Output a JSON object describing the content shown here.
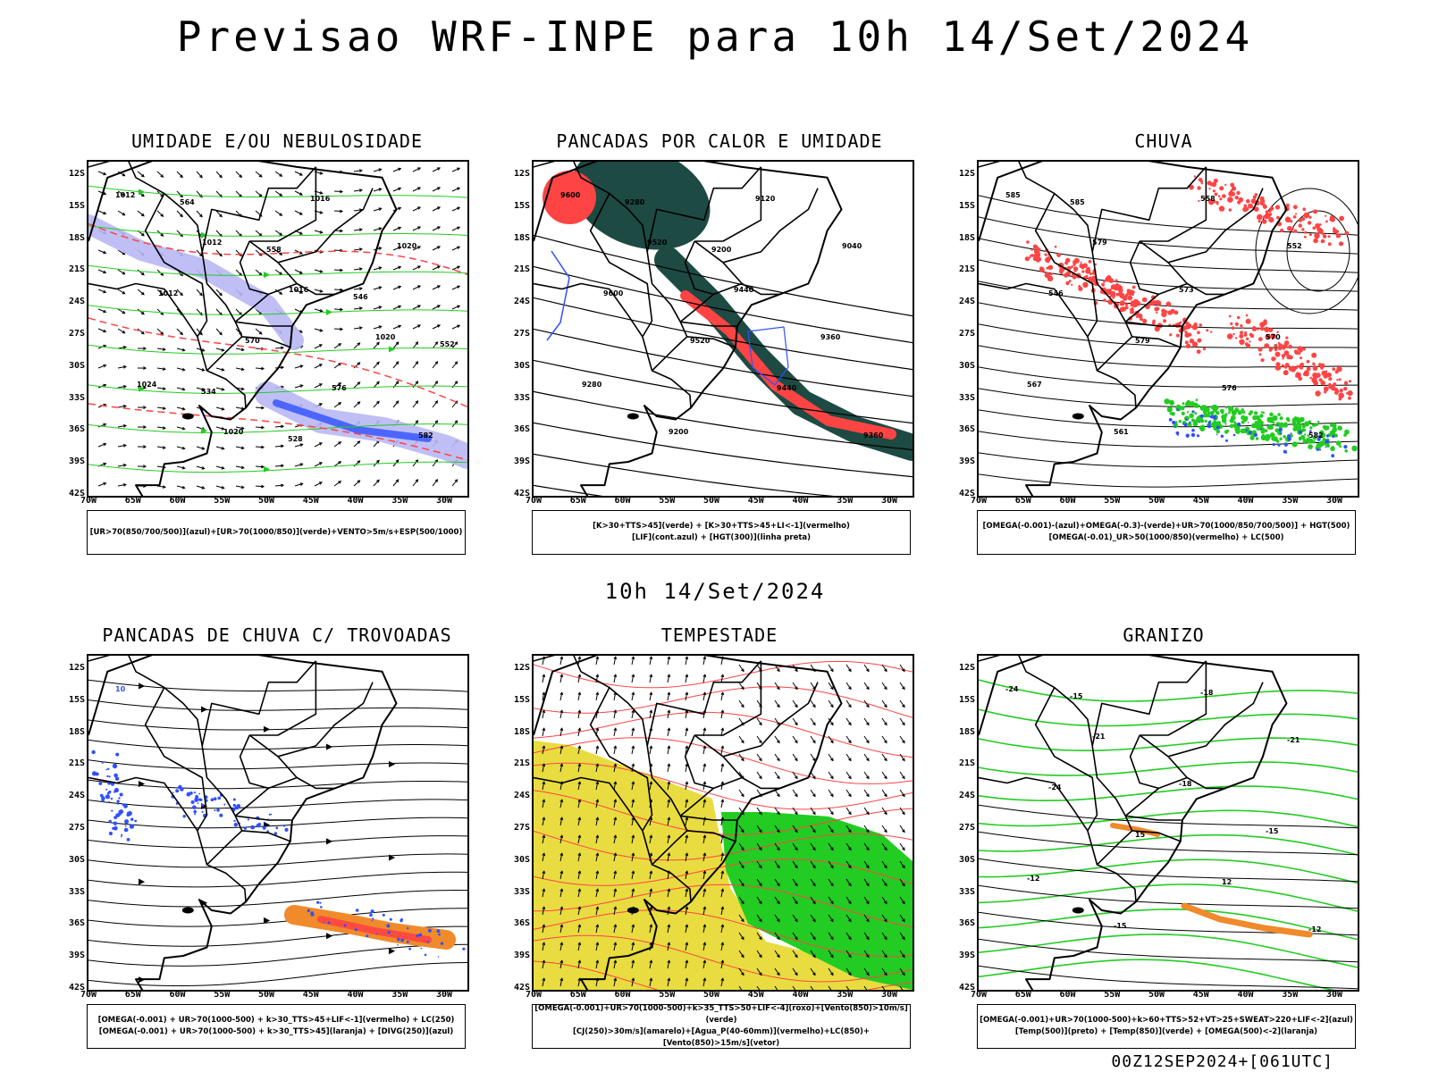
{
  "title": "Previsao WRF-INPE  para 10h 14/Set/2024",
  "mid_title": "10h 14/Set/2024",
  "footer": "00Z12SEP2024+[061UTC]",
  "colors": {
    "blue": "#3050ff",
    "lavender": "#b8b8f4",
    "green": "#22cc22",
    "red": "#ff4444",
    "dark_green": "#1e4a44",
    "yellow": "#e8dc40",
    "orange": "#f08a2a",
    "black": "#000000"
  },
  "axes": {
    "lat_labels": [
      "12S",
      "15S",
      "18S",
      "21S",
      "24S",
      "27S",
      "30S",
      "33S",
      "36S",
      "39S",
      "42S"
    ],
    "lon_labels": [
      "70W",
      "65W",
      "60W",
      "55W",
      "50W",
      "45W",
      "40W",
      "35W",
      "30W"
    ]
  },
  "panels": [
    {
      "id": "umidade",
      "title": "UMIDADE E/OU NEBULOSIDADE",
      "legend": [
        "[UR>70(850/700/500)](azul)+[UR>70(1000/850)](verde)+VENTO>5m/s+ESP(500/1000)"
      ],
      "labels": [
        "1012",
        "1012",
        "1016",
        "1020",
        "1024",
        "1020",
        "1016",
        "1020",
        "1012",
        "570",
        "576",
        "582",
        "564",
        "558",
        "546",
        "552",
        "534",
        "528"
      ]
    },
    {
      "id": "pancadas_calor",
      "title": "PANCADAS POR CALOR E UMIDADE",
      "legend": [
        "[K>30+TTS>45](verde) + [K>30+TTS>45+LI<-1](vermelho)",
        "[LIF](cont.azul) + [HGT(300)](linha preta)"
      ],
      "labels": [
        "9600",
        "9520",
        "9440",
        "9360",
        "9280",
        "9200",
        "9120",
        "9040",
        "9600",
        "9520",
        "9440",
        "9360",
        "9280",
        "9200"
      ]
    },
    {
      "id": "chuva",
      "title": "CHUVA",
      "legend": [
        "[OMEGA(-0.001)-(azul)+OMEGA(-0.3)-(verde)+UR>70(1000/850/700/500)] + HGT(500)",
        "[OMEGA(-0.01)_UR>50(1000/850)(vermelho) + LC(500)"
      ],
      "labels": [
        "585",
        "579",
        "573",
        "570",
        "567",
        "561",
        "558",
        "552",
        "546",
        "579",
        "576",
        "582",
        "585"
      ]
    },
    {
      "id": "pancadas_trovoadas",
      "title": "PANCADAS DE CHUVA C/ TROVOADAS",
      "legend": [
        "[OMEGA(-0.001) + UR>70(1000-500) + k>30_TTS>45+LIF<-1](vermelho) + LC(250)",
        "[OMEGA(-0.001) + UR>70(1000-500) + k>30_TTS>45](laranja) + [DIVG(250)](azul)"
      ],
      "labels": [
        "10"
      ]
    },
    {
      "id": "tempestade",
      "title": "TEMPESTADE",
      "legend": [
        "[OMEGA(-0.001)+UR>70(1000-500)+k>35_TTS>50+LIF<-4](roxo)+[Vento(850)>10m/s](verde)",
        "[CJ(250)>30m/s](amarelo)+[Agua_P(40-60mm)](vermelho)+LC(850)+[Vento(850)>15m/s](vetor)"
      ],
      "labels": []
    },
    {
      "id": "granizo",
      "title": "GRANIZO",
      "legend": [
        "[OMEGA(-0.001)+UR>70(1000-500)+k>60+TTS>52+VT>25+SWEAT>220+LIF<-2](azul)",
        "[Temp(500)](preto) + [Temp(850)](verde) + [OMEGA(500)<-2](laranja)"
      ],
      "labels": [
        "-24",
        "-21",
        "-18",
        "-15",
        "-12",
        "-15",
        "-18",
        "-21",
        "-24",
        "15",
        "12",
        "-12",
        "-15"
      ]
    }
  ]
}
